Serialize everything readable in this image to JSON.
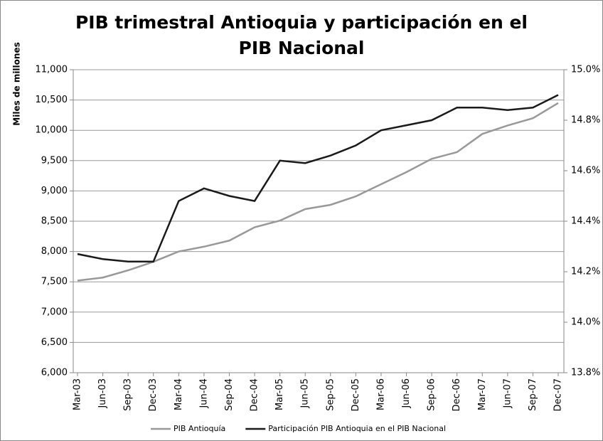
{
  "chart_data": {
    "type": "line",
    "title": "PIB trimestral Antioquia y participación en el PIB Nacional",
    "y_label": "Miles de millones",
    "categories": [
      "Mar-03",
      "Jun-03",
      "Sep-03",
      "Dec-03",
      "Mar-04",
      "Jun-04",
      "Sep-04",
      "Dec-04",
      "Mar-05",
      "Jun-05",
      "Sep-05",
      "Dec-05",
      "Mar-06",
      "Jun-06",
      "Sep-06",
      "Dec-06",
      "Mar-07",
      "Jun-07",
      "Sep-07",
      "Dec-07"
    ],
    "series": [
      {
        "name": "PIB Antioquía",
        "color": "#999999",
        "values": [
          7520,
          7570,
          7690,
          7830,
          8000,
          8080,
          8180,
          8400,
          8510,
          8700,
          8770,
          8910,
          9110,
          9310,
          9530,
          9640,
          9940,
          10080,
          10200,
          10450
        ]
      },
      {
        "name": "Participación PIB Antioquia en el PIB Nacional",
        "color": "#1a1a1a",
        "axis": "y2",
        "values": [
          14.27,
          14.25,
          14.24,
          14.24,
          14.48,
          14.53,
          14.5,
          14.48,
          14.64,
          14.63,
          14.66,
          14.7,
          14.76,
          14.78,
          14.8,
          14.85,
          14.85,
          14.84,
          14.85,
          14.9
        ]
      }
    ],
    "ylim": [
      6000,
      11000
    ],
    "yticks": [
      {
        "value": 6000,
        "label": "6,000"
      },
      {
        "value": 6500,
        "label": "6,500"
      },
      {
        "value": 7000,
        "label": "7,000"
      },
      {
        "value": 7500,
        "label": "7,500"
      },
      {
        "value": 8000,
        "label": "8,000"
      },
      {
        "value": 8500,
        "label": "8,500"
      },
      {
        "value": 9000,
        "label": "9,000"
      },
      {
        "value": 9500,
        "label": "9,500"
      },
      {
        "value": 10000,
        "label": "10,000"
      },
      {
        "value": 10500,
        "label": "10,500"
      },
      {
        "value": 11000,
        "label": "11,000"
      }
    ],
    "y2lim": [
      13.8,
      15.0
    ],
    "y2ticks": [
      {
        "value": 13.8,
        "label": "13.8%"
      },
      {
        "value": 14.0,
        "label": "14.0%"
      },
      {
        "value": 14.2,
        "label": "14.2%"
      },
      {
        "value": 14.4,
        "label": "14.4%"
      },
      {
        "value": 14.6,
        "label": "14.6%"
      },
      {
        "value": 14.8,
        "label": "14.8%"
      },
      {
        "value": 15.0,
        "label": "15.0%"
      }
    ],
    "grid": true,
    "legend": "bottom"
  }
}
